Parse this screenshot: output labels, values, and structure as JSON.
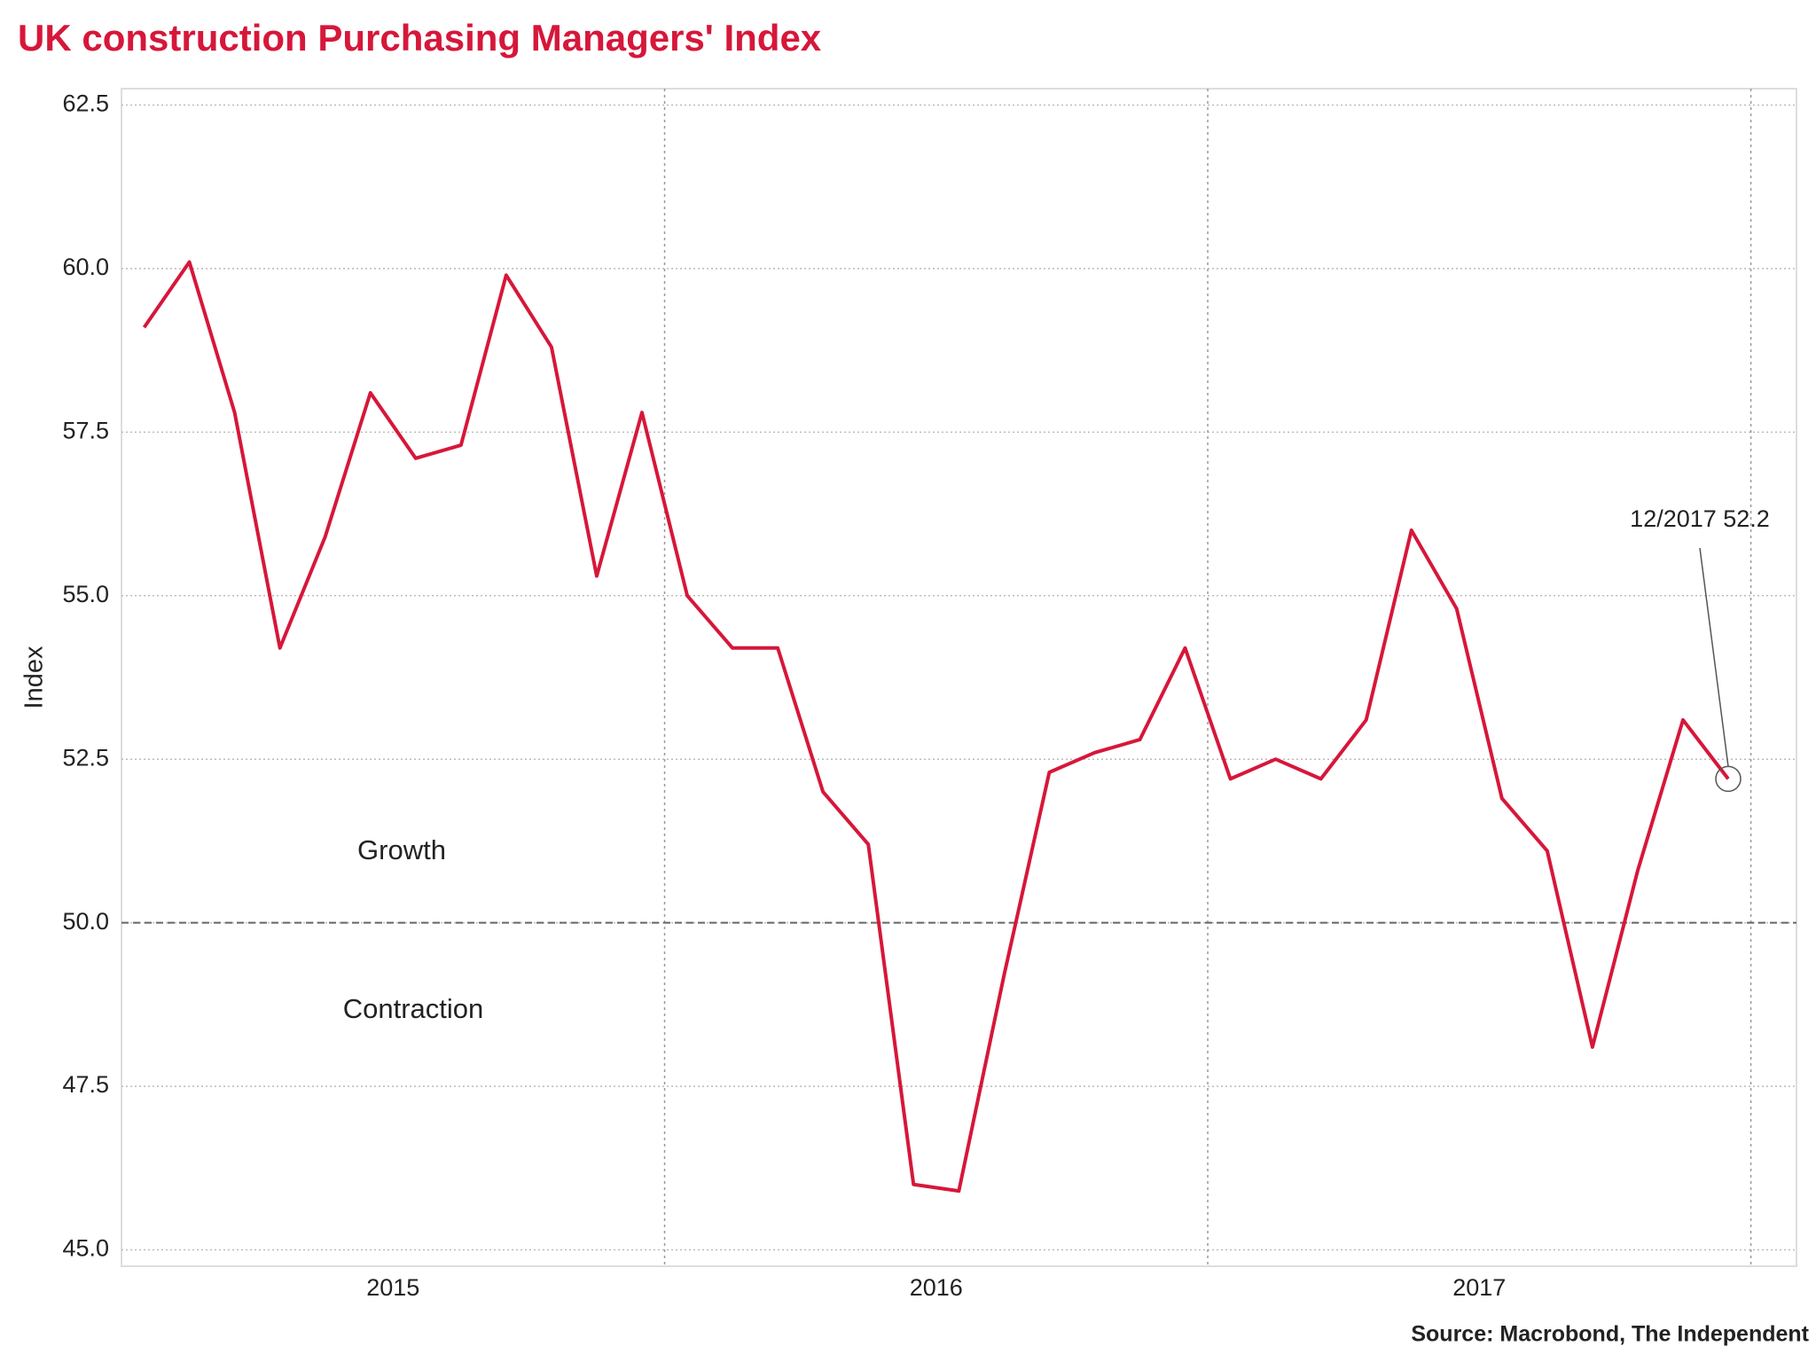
{
  "chart_data": {
    "type": "line",
    "title": "UK construction Purchasing Managers' Index",
    "y_label": "Index",
    "source": "Source: Macrobond, The Independent",
    "x": [
      2015.0417,
      2015.125,
      2015.2083,
      2015.2917,
      2015.375,
      2015.4583,
      2015.5417,
      2015.625,
      2015.7083,
      2015.7917,
      2015.875,
      2015.9583,
      2016.0417,
      2016.125,
      2016.2083,
      2016.2917,
      2016.375,
      2016.4583,
      2016.5417,
      2016.625,
      2016.7083,
      2016.7917,
      2016.875,
      2016.9583,
      2017.0417,
      2017.125,
      2017.2083,
      2017.2917,
      2017.375,
      2017.4583,
      2017.5417,
      2017.625,
      2017.7083,
      2017.7917,
      2017.875,
      2017.9583
    ],
    "series": [
      {
        "name": "UK construction PMI",
        "color": "#d6173a",
        "values": [
          59.1,
          60.1,
          57.8,
          54.2,
          55.9,
          58.1,
          57.1,
          57.3,
          59.9,
          58.8,
          55.3,
          57.8,
          55.0,
          54.2,
          54.2,
          52.0,
          51.2,
          46.0,
          45.9,
          49.2,
          52.3,
          52.6,
          52.8,
          54.2,
          52.2,
          52.5,
          52.2,
          53.1,
          56.0,
          54.8,
          51.9,
          51.1,
          48.1,
          50.8,
          53.1,
          52.2
        ]
      }
    ],
    "xlim": [
      2015,
      2018.084
    ],
    "xticks": [
      2016,
      2017,
      2018
    ],
    "x_labels": [
      {
        "value": 2015.5,
        "label": "2015"
      },
      {
        "value": 2016.5,
        "label": "2016"
      },
      {
        "value": 2017.5,
        "label": "2017"
      }
    ],
    "ylim": [
      44.75,
      62.75
    ],
    "yticks": [
      {
        "value": 45,
        "label": "45.0"
      },
      {
        "value": 47.5,
        "label": "47.5"
      },
      {
        "value": 50,
        "label": "50.0"
      },
      {
        "value": 52.5,
        "label": "52.5"
      },
      {
        "value": 55,
        "label": "55.0"
      },
      {
        "value": 57.5,
        "label": "57.5"
      },
      {
        "value": 60,
        "label": "60.0"
      },
      {
        "value": 62.5,
        "label": "62.5"
      }
    ],
    "grid": true,
    "reference_line": 50,
    "region_labels": [
      "Growth",
      "Contraction"
    ],
    "last_point_label": "12/2017 52.2"
  }
}
